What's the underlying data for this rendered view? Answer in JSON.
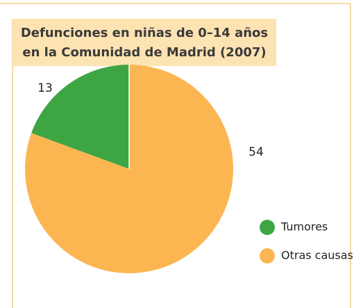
{
  "chart_data": {
    "type": "pie",
    "title": [
      "Defunciones en niñas de 0–14 años",
      "en la Comunidad de Madrid (2007)"
    ],
    "categories": [
      "Tumores",
      "Otras causas"
    ],
    "values": [
      13,
      54
    ],
    "colors": [
      "#3ea543",
      "#fbb652"
    ],
    "legend": "right"
  }
}
